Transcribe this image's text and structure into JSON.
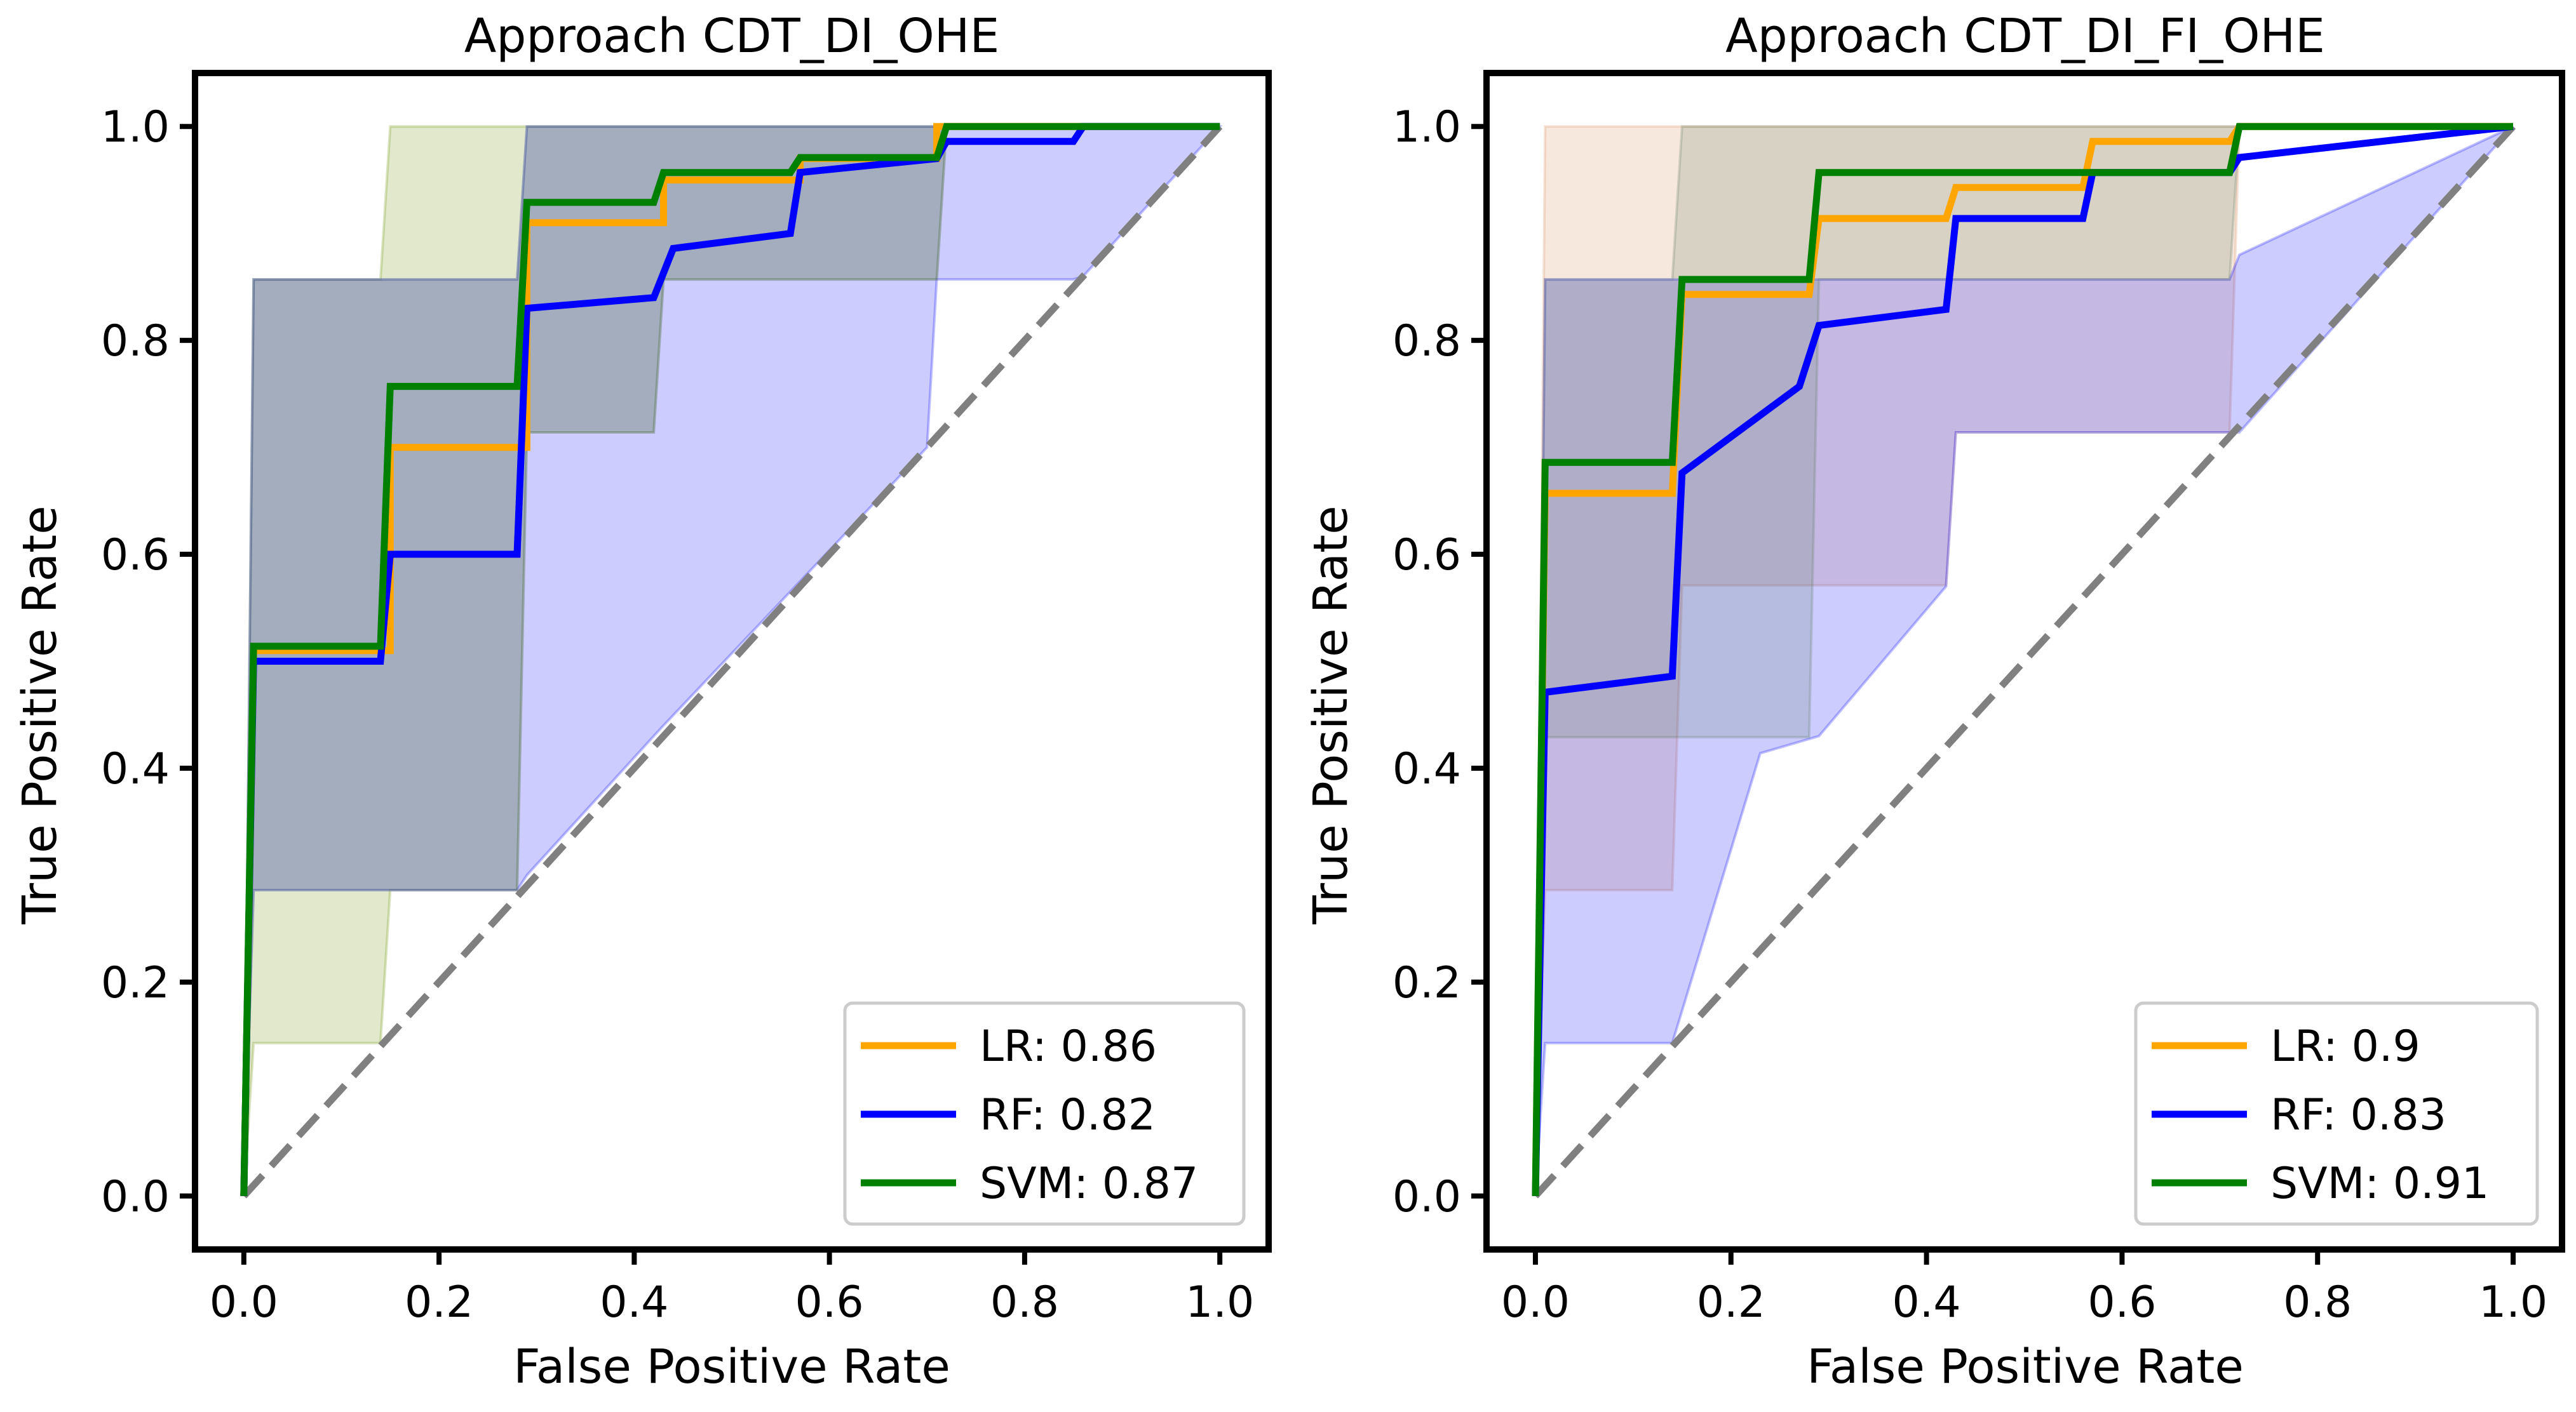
{
  "chart_data": [
    {
      "type": "line",
      "title": "Approach CDT_DI_OHE",
      "xlabel": "False Positive Rate",
      "ylabel": "True Positive Rate",
      "xlim": [
        -0.05,
        1.05
      ],
      "ylim": [
        -0.05,
        1.05
      ],
      "xticks": [
        "0.0",
        "0.2",
        "0.4",
        "0.6",
        "0.8",
        "1.0"
      ],
      "yticks": [
        "0.0",
        "0.2",
        "0.4",
        "0.6",
        "0.8",
        "1.0"
      ],
      "legend_position": "lower-right",
      "grid": false,
      "diagonal": {
        "x": [
          0,
          1
        ],
        "y": [
          0,
          1
        ],
        "color": "#808080",
        "style": "dashed"
      },
      "series": [
        {
          "name": "LR: 0.86",
          "color": "#FFA500",
          "fill": "#6b8e00",
          "x": [
            0,
            0.01,
            0.01,
            0.15,
            0.15,
            0.29,
            0.29,
            0.43,
            0.43,
            0.57,
            0.57,
            0.71,
            0.71,
            1.0
          ],
          "y": [
            0,
            0.5,
            0.51,
            0.51,
            0.7,
            0.7,
            0.91,
            0.91,
            0.95,
            0.95,
            0.97,
            0.97,
            1.0,
            1.0
          ],
          "band_x": [
            0,
            0.01,
            0.01,
            0.14,
            0.15,
            0.28,
            0.29,
            0.42,
            0.43,
            0.56,
            0.57,
            0.71,
            0.72,
            1.0
          ],
          "band_lower": [
            0,
            0.143,
            0.143,
            0.143,
            0.286,
            0.286,
            0.714,
            0.714,
            0.857,
            0.857,
            0.857,
            0.857,
            1.0,
            1.0
          ],
          "band_upper": [
            0,
            0.857,
            0.857,
            0.857,
            1.0,
            1.0,
            1.0,
            1.0,
            1.0,
            1.0,
            1.0,
            1.0,
            1.0,
            1.0
          ]
        },
        {
          "name": "RF: 0.82",
          "color": "#0000FF",
          "fill": "#0000ff",
          "x": [
            0,
            0.01,
            0.14,
            0.15,
            0.28,
            0.29,
            0.42,
            0.44,
            0.56,
            0.57,
            0.71,
            0.72,
            0.85,
            0.86,
            1.0
          ],
          "y": [
            0,
            0.5,
            0.5,
            0.6,
            0.6,
            0.83,
            0.84,
            0.886,
            0.9,
            0.957,
            0.97,
            0.986,
            0.986,
            1.0,
            1.0
          ],
          "band_x": [
            0,
            0.01,
            0.28,
            0.29,
            0.42,
            0.43,
            0.7,
            0.71,
            0.85,
            0.86,
            1.0
          ],
          "band_lower": [
            0,
            0.286,
            0.286,
            0.3,
            0.43,
            0.44,
            0.7,
            0.857,
            0.857,
            0.86,
            1.0
          ],
          "band_upper": [
            0,
            0.857,
            0.857,
            1.0,
            1.0,
            1.0,
            1.0,
            1.0,
            1.0,
            1.0,
            1.0
          ]
        },
        {
          "name": "SVM: 0.87",
          "color": "#008000",
          "fill": "#5e7d5e",
          "x": [
            0,
            0.01,
            0.14,
            0.15,
            0.28,
            0.29,
            0.42,
            0.43,
            0.56,
            0.57,
            0.71,
            0.72,
            1.0
          ],
          "y": [
            0,
            0.514,
            0.514,
            0.757,
            0.757,
            0.929,
            0.929,
            0.957,
            0.957,
            0.971,
            0.971,
            1.0,
            1.0
          ],
          "band_x": [
            0,
            0.01,
            0.28,
            0.29,
            0.42,
            0.43,
            0.71,
            0.72,
            1.0
          ],
          "band_lower": [
            0,
            0.286,
            0.286,
            0.714,
            0.714,
            0.857,
            0.857,
            1.0,
            1.0
          ],
          "band_upper": [
            0,
            0.857,
            0.857,
            1.0,
            1.0,
            1.0,
            1.0,
            1.0,
            1.0
          ]
        }
      ]
    },
    {
      "type": "line",
      "title": "Approach CDT_DI_FI_OHE",
      "xlabel": "False Positive Rate",
      "ylabel": "True Positive Rate",
      "xlim": [
        -0.05,
        1.05
      ],
      "ylim": [
        -0.05,
        1.05
      ],
      "xticks": [
        "0.0",
        "0.2",
        "0.4",
        "0.6",
        "0.8",
        "1.0"
      ],
      "yticks": [
        "0.0",
        "0.2",
        "0.4",
        "0.6",
        "0.8",
        "1.0"
      ],
      "legend_position": "lower-right",
      "grid": false,
      "diagonal": {
        "x": [
          0,
          1
        ],
        "y": [
          0,
          1
        ],
        "color": "#808080",
        "style": "dashed"
      },
      "series": [
        {
          "name": "LR: 0.9",
          "color": "#FFA500",
          "fill": "#d98c5a",
          "x": [
            0,
            0.01,
            0.14,
            0.15,
            0.28,
            0.29,
            0.42,
            0.43,
            0.56,
            0.57,
            0.71,
            0.72,
            1.0
          ],
          "y": [
            0,
            0.657,
            0.657,
            0.843,
            0.843,
            0.914,
            0.914,
            0.943,
            0.943,
            0.986,
            0.986,
            1.0,
            1.0
          ],
          "band_x": [
            0,
            0.01,
            0.14,
            0.15,
            0.28,
            0.29,
            0.42,
            0.43,
            0.56,
            0.57,
            0.71,
            0.72,
            1.0
          ],
          "band_lower": [
            0,
            0.286,
            0.286,
            0.571,
            0.571,
            0.571,
            0.571,
            0.714,
            0.714,
            0.714,
            0.714,
            1.0,
            1.0
          ],
          "band_upper": [
            0,
            1.0,
            1.0,
            1.0,
            1.0,
            1.0,
            1.0,
            1.0,
            1.0,
            1.0,
            1.0,
            1.0,
            1.0
          ]
        },
        {
          "name": "RF: 0.83",
          "color": "#0000FF",
          "fill": "#0000ff",
          "x": [
            0,
            0.01,
            0.14,
            0.15,
            0.27,
            0.29,
            0.42,
            0.43,
            0.56,
            0.57,
            0.71,
            0.72,
            1.0
          ],
          "y": [
            0,
            0.471,
            0.486,
            0.676,
            0.757,
            0.814,
            0.829,
            0.914,
            0.914,
            0.957,
            0.957,
            0.971,
            1.0
          ],
          "band_x": [
            0,
            0.01,
            0.14,
            0.23,
            0.29,
            0.42,
            0.43,
            0.71,
            0.72,
            1.0
          ],
          "band_lower": [
            0,
            0.143,
            0.143,
            0.414,
            0.43,
            0.57,
            0.714,
            0.714,
            0.714,
            1.0
          ],
          "band_upper": [
            0,
            0.857,
            0.857,
            0.857,
            0.857,
            0.857,
            0.857,
            0.857,
            0.88,
            1.0
          ]
        },
        {
          "name": "SVM: 0.91",
          "color": "#008000",
          "fill": "#5e7d5e",
          "x": [
            0,
            0.01,
            0.14,
            0.15,
            0.28,
            0.29,
            0.71,
            0.72,
            1.0
          ],
          "y": [
            0,
            0.686,
            0.686,
            0.857,
            0.857,
            0.957,
            0.957,
            1.0,
            1.0
          ],
          "band_x": [
            0,
            0.01,
            0.14,
            0.15,
            0.28,
            0.29,
            0.71,
            0.72,
            1.0
          ],
          "band_lower": [
            0,
            0.429,
            0.429,
            0.429,
            0.429,
            0.857,
            0.857,
            1.0,
            1.0
          ],
          "band_upper": [
            0,
            0.857,
            0.857,
            1.0,
            1.0,
            1.0,
            1.0,
            1.0,
            1.0
          ]
        }
      ]
    }
  ]
}
